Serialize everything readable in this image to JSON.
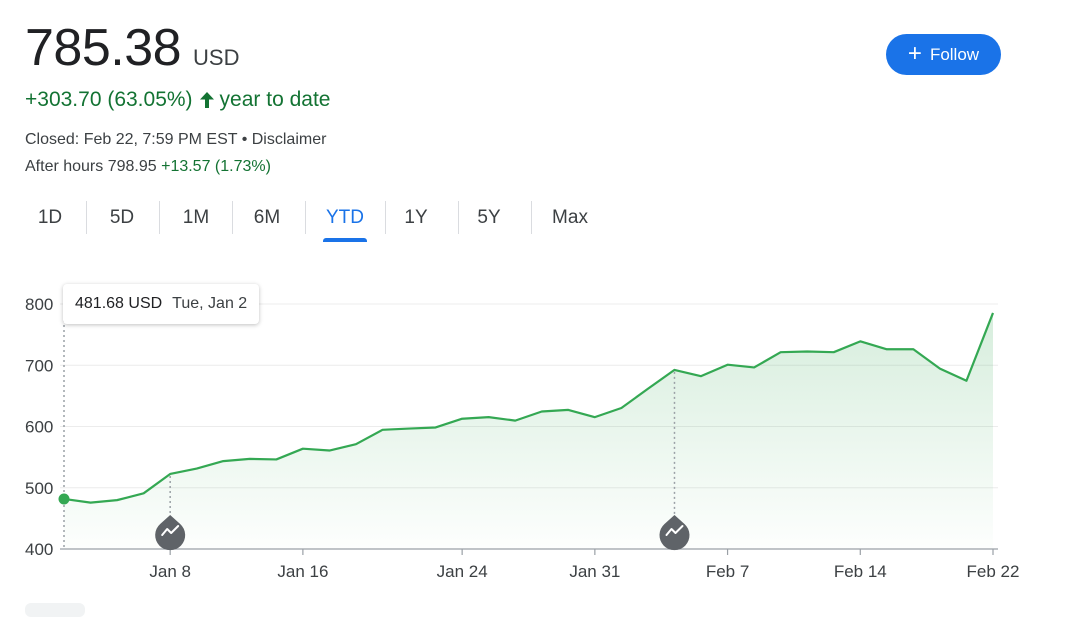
{
  "quote": {
    "price": "785.38",
    "currency": "USD",
    "change": "+303.70 (63.05%)",
    "change_direction_icon": "arrow-up-icon",
    "period_label": "year to date",
    "closed_text": "Closed: Feb 22, 7:59 PM EST • Disclaimer",
    "after_hours_label": "After hours 798.95",
    "after_hours_change": "+13.57 (1.73%)"
  },
  "follow_button": {
    "icon": "plus-icon",
    "label": "Follow"
  },
  "tabs": [
    {
      "label": "1D",
      "active": false
    },
    {
      "label": "5D",
      "active": false
    },
    {
      "label": "1M",
      "active": false
    },
    {
      "label": "6M",
      "active": false
    },
    {
      "label": "YTD",
      "active": true
    },
    {
      "label": "1Y",
      "active": false
    },
    {
      "label": "5Y",
      "active": false
    },
    {
      "label": "Max",
      "active": false
    }
  ],
  "tooltip": {
    "value": "481.68 USD",
    "date": "Tue, Jan 2"
  },
  "colors": {
    "up_green": "#34a853",
    "text_green": "#137333",
    "accent_blue": "#1a73e8"
  },
  "chart_data": {
    "type": "area",
    "xlabel": "",
    "ylabel": "",
    "ylim": [
      400,
      800
    ],
    "y_ticks": [
      400,
      500,
      600,
      700,
      800
    ],
    "x_tick_labels": [
      "Jan 8",
      "Jan 16",
      "Jan 24",
      "Jan 31",
      "Feb 7",
      "Feb 14",
      "Feb 22"
    ],
    "x_tick_indices": [
      4,
      9,
      15,
      20,
      25,
      30,
      35
    ],
    "grid": true,
    "series": [
      {
        "values": [
          481.68,
          475.7,
          479.8,
          490.9,
          522.5,
          531.4,
          543.5,
          547.1,
          546.2,
          563.8,
          560.8,
          571.1,
          594.6,
          596.6,
          598.4,
          612.7,
          615.3,
          609.6,
          624.5,
          627.1,
          615.3,
          630.2,
          661.6,
          692.4,
          682.2,
          700.9,
          696.4,
          721.3,
          722.5,
          721.3,
          739.0,
          726.1,
          726.1,
          694.5,
          674.7,
          785.38
        ]
      }
    ],
    "event_markers": [
      {
        "index": 4,
        "icon": "news-trend-icon"
      },
      {
        "index": 23,
        "icon": "news-trend-icon"
      }
    ],
    "highlight_index": 0
  }
}
